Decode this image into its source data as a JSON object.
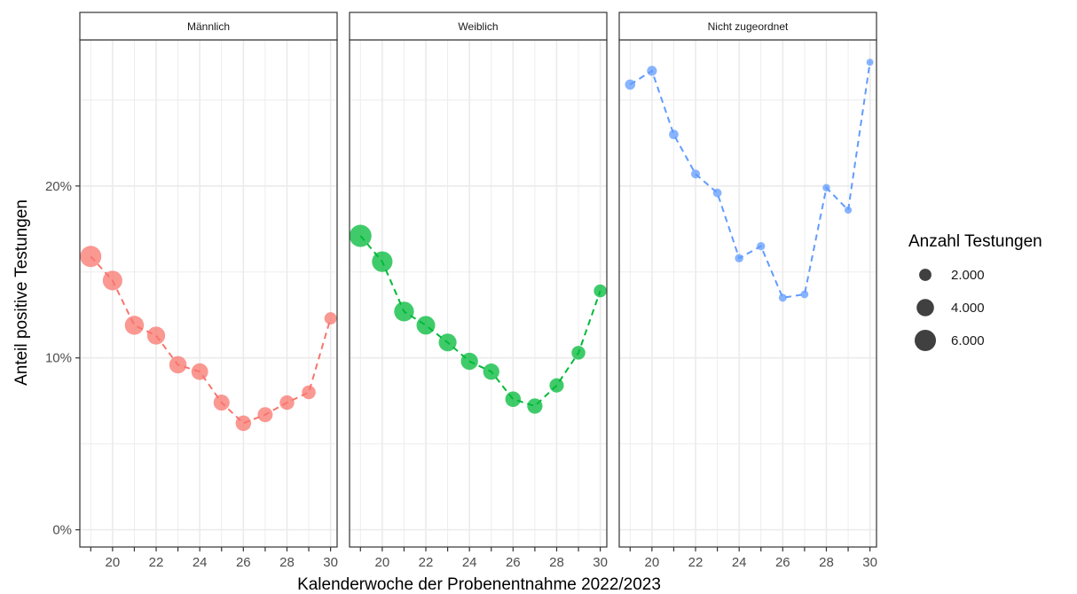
{
  "chart_data": {
    "type": "scatter",
    "xlabel": "Kalenderwoche der Probenentnahme 2022/2023",
    "ylabel": "Anteil positive Testungen",
    "xlim": [
      18.5,
      30.3
    ],
    "ylim": [
      -0.01,
      0.285
    ],
    "x_ticks": [
      20,
      22,
      24,
      26,
      28,
      30
    ],
    "x_tick_labels": [
      "20",
      "22",
      "24",
      "26",
      "28",
      "30"
    ],
    "y_ticks": [
      0,
      0.1,
      0.2
    ],
    "y_tick_labels": [
      "0%",
      "10%",
      "20%"
    ],
    "grid": true,
    "line_style": "dashed",
    "legend": {
      "title": "Anzahl Testungen",
      "placement": "right",
      "entries": [
        {
          "label": "2.000",
          "size": 2000
        },
        {
          "label": "4.000",
          "size": 4000
        },
        {
          "label": "6.000",
          "size": 6000
        }
      ]
    },
    "facets": [
      {
        "name": "Männlich",
        "color": "#f8766d",
        "x": [
          19,
          20,
          21,
          22,
          23,
          24,
          25,
          26,
          27,
          28,
          29,
          30
        ],
        "y": [
          0.159,
          0.145,
          0.119,
          0.113,
          0.096,
          0.092,
          0.074,
          0.062,
          0.067,
          0.074,
          0.08,
          0.123
        ],
        "sizes": [
          6000,
          5100,
          4800,
          4300,
          4000,
          3700,
          3400,
          3200,
          3000,
          2800,
          2500,
          2000
        ]
      },
      {
        "name": "Weiblich",
        "color": "#00ba38",
        "x": [
          19,
          20,
          21,
          22,
          23,
          24,
          25,
          26,
          27,
          28,
          29,
          30
        ],
        "y": [
          0.171,
          0.156,
          0.127,
          0.119,
          0.109,
          0.098,
          0.092,
          0.076,
          0.072,
          0.084,
          0.103,
          0.139
        ],
        "sizes": [
          6500,
          5600,
          5200,
          4600,
          4200,
          3900,
          3500,
          3200,
          3100,
          2700,
          2500,
          2200
        ]
      },
      {
        "name": "Nicht zugeordnet",
        "color": "#619cff",
        "x": [
          19,
          20,
          21,
          22,
          23,
          24,
          25,
          26,
          27,
          28,
          29,
          30
        ],
        "y": [
          0.259,
          0.267,
          0.23,
          0.207,
          0.196,
          0.158,
          0.165,
          0.135,
          0.137,
          0.199,
          0.186,
          0.272
        ],
        "sizes": [
          1400,
          1300,
          1200,
          1050,
          1000,
          950,
          900,
          850,
          800,
          750,
          700,
          650
        ]
      }
    ]
  }
}
